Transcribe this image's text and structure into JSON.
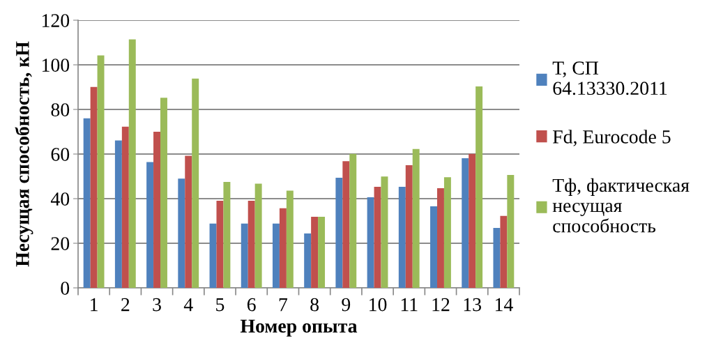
{
  "chart_data": {
    "type": "bar",
    "xlabel": "Номер опыта",
    "ylabel": "Несущая способность, кН",
    "categories": [
      "1",
      "2",
      "3",
      "4",
      "5",
      "6",
      "7",
      "8",
      "9",
      "10",
      "11",
      "12",
      "13",
      "14"
    ],
    "series": [
      {
        "name": "Т, СП 64.13330.2011",
        "color": "#4f81bd",
        "values": [
          76.0,
          66.1,
          56.4,
          49.0,
          28.8,
          28.8,
          28.8,
          24.4,
          49.4,
          40.6,
          45.3,
          36.6,
          58.1,
          26.9
        ]
      },
      {
        "name": "Fd, Eurocode 5",
        "color": "#c0504d",
        "values": [
          90.1,
          72.3,
          70.0,
          59.2,
          39.1,
          39.1,
          35.7,
          31.9,
          56.8,
          45.3,
          55.0,
          44.7,
          60.1,
          32.3
        ]
      },
      {
        "name": "Тф, фактическая несущая способность",
        "color": "#9bbb59",
        "values": [
          104.2,
          111.4,
          85.2,
          93.8,
          47.5,
          46.7,
          43.6,
          31.9,
          60.1,
          49.9,
          62.3,
          49.6,
          90.3,
          50.6
        ]
      }
    ],
    "ylim": [
      0,
      120
    ],
    "yticks": [
      0,
      20,
      40,
      60,
      80,
      100,
      120
    ],
    "grid": "y",
    "legend": "right"
  }
}
